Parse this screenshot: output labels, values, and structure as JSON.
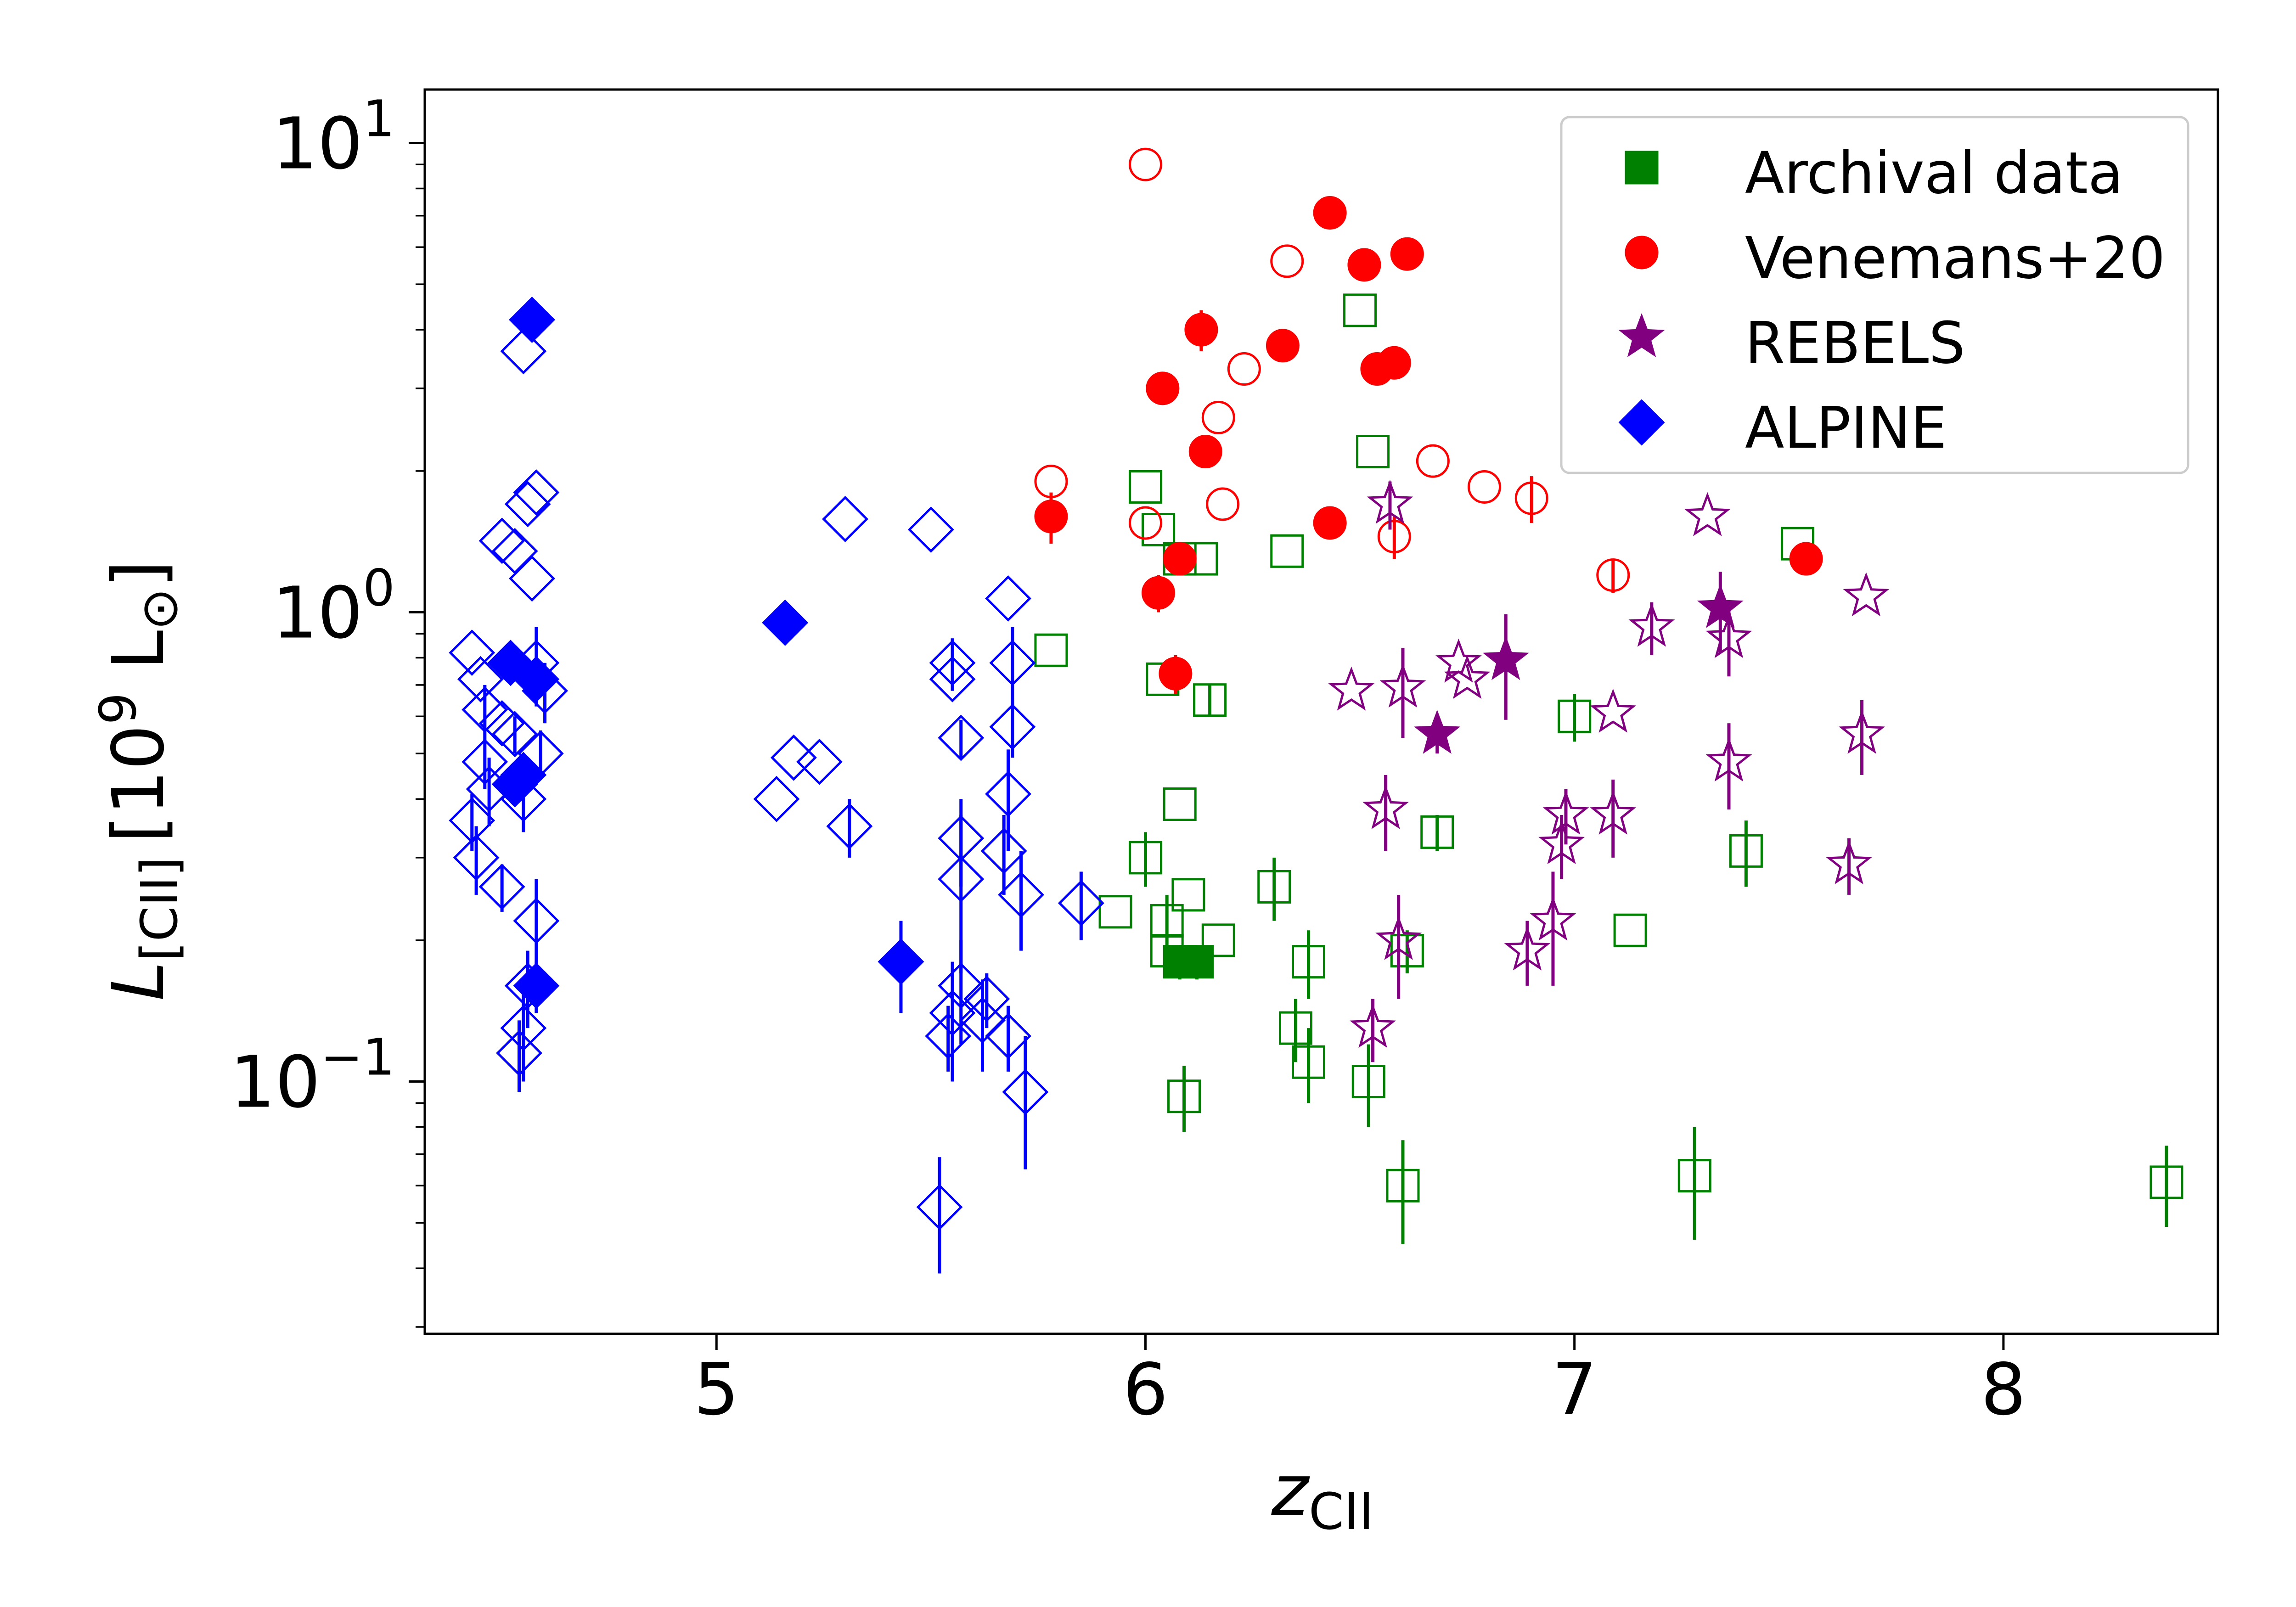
{
  "chart_data": {
    "type": "scatter",
    "xlabel": "z",
    "xlabel_sub": "CII",
    "ylabel": "L",
    "ylabel_sub": "[CII]",
    "ylabel_units": "[10",
    "ylabel_units_sup": "9",
    "ylabel_units_tail": " L",
    "ylabel_units_sun": "⊙",
    "ylabel_units_close": "]",
    "xlim": [
      4.32,
      8.5
    ],
    "ylim": [
      0.029,
      13.0
    ],
    "y_scale": "log",
    "x_ticks": [
      {
        "value": 5,
        "label": "5"
      },
      {
        "value": 6,
        "label": "6"
      },
      {
        "value": 7,
        "label": "7"
      },
      {
        "value": 8,
        "label": "8"
      }
    ],
    "y_ticks": [
      {
        "value": 0.1,
        "base": "10",
        "exp": "−1"
      },
      {
        "value": 1,
        "base": "10",
        "exp": "0"
      },
      {
        "value": 10,
        "base": "10",
        "exp": "1"
      }
    ],
    "legend_position": "top-right",
    "series": [
      {
        "name": "Archival data",
        "marker": "square",
        "color": "#008000",
        "points": [
          [
            6.0,
            1.85,
            0,
            0
          ],
          [
            6.03,
            1.5,
            0,
            0
          ],
          [
            6.08,
            1.3,
            0,
            0
          ],
          [
            6.13,
            1.3,
            0,
            0
          ],
          [
            6.33,
            1.35,
            0,
            0
          ],
          [
            6.5,
            4.4,
            0,
            0
          ],
          [
            6.53,
            2.2,
            0,
            0
          ],
          [
            7.52,
            1.4,
            0,
            0
          ],
          [
            5.78,
            0.83,
            0,
            0
          ],
          [
            6.04,
            0.72,
            0,
            0
          ],
          [
            6.15,
            0.65,
            0.05,
            0.05
          ],
          [
            7.0,
            0.6,
            0.07,
            0.07
          ],
          [
            6.08,
            0.39,
            0,
            0
          ],
          [
            6.68,
            0.34,
            0.03,
            0.03
          ],
          [
            6.0,
            0.3,
            0.04,
            0.04
          ],
          [
            7.4,
            0.31,
            0.05,
            0.05
          ],
          [
            5.93,
            0.23,
            0,
            0
          ],
          [
            6.05,
            0.22,
            0.03,
            0.03
          ],
          [
            6.1,
            0.25,
            0,
            0
          ],
          [
            6.3,
            0.26,
            0.04,
            0.04
          ],
          [
            6.17,
            0.2,
            0,
            0
          ],
          [
            6.05,
            0.19,
            0,
            0
          ],
          [
            6.61,
            0.19,
            0.02,
            0.02
          ],
          [
            7.13,
            0.21,
            0,
            0
          ],
          [
            6.38,
            0.18,
            0.03,
            0.03
          ],
          [
            6.35,
            0.13,
            0.02,
            0.02
          ],
          [
            6.38,
            0.11,
            0.02,
            0.02
          ],
          [
            6.52,
            0.1,
            0.02,
            0.02
          ],
          [
            6.09,
            0.093,
            0.015,
            0.015
          ],
          [
            6.6,
            0.06,
            0.015,
            0.015
          ],
          [
            7.28,
            0.063,
            0.017,
            0.017
          ],
          [
            8.38,
            0.061,
            0.012,
            0.012
          ]
        ],
        "filled_points": [
          [
            6.08,
            0.18,
            0.015,
            0.015
          ],
          [
            6.12,
            0.18,
            0.015,
            0.015
          ]
        ]
      },
      {
        "name": "Venemans+20",
        "marker": "circle",
        "color": "#ff0000",
        "points": [
          [
            6.0,
            9.0,
            0,
            0
          ],
          [
            6.33,
            5.6,
            0,
            0
          ],
          [
            6.23,
            3.3,
            0,
            0
          ],
          [
            6.17,
            2.6,
            0,
            0
          ],
          [
            5.78,
            1.9,
            0,
            0
          ],
          [
            6.0,
            1.55,
            0,
            0
          ],
          [
            6.18,
            1.7,
            0,
            0
          ],
          [
            6.58,
            1.45,
            0.15,
            0.15
          ],
          [
            6.67,
            2.1,
            0,
            0
          ],
          [
            6.79,
            1.85,
            0,
            0
          ],
          [
            6.9,
            1.75,
            0.2,
            0.2
          ],
          [
            7.09,
            1.2,
            0.1,
            0.1
          ]
        ],
        "filled_points": [
          [
            6.43,
            7.1,
            0,
            0
          ],
          [
            6.51,
            5.5,
            0,
            0
          ],
          [
            6.61,
            5.8,
            0,
            0
          ],
          [
            6.13,
            4.0,
            0.4,
            0.4
          ],
          [
            6.32,
            3.7,
            0,
            0
          ],
          [
            6.54,
            3.3,
            0,
            0
          ],
          [
            6.58,
            3.4,
            0,
            0
          ],
          [
            6.04,
            3.0,
            0,
            0
          ],
          [
            6.14,
            2.2,
            0,
            0
          ],
          [
            5.78,
            1.6,
            0.2,
            0.2
          ],
          [
            6.43,
            1.55,
            0,
            0
          ],
          [
            6.08,
            1.3,
            0.1,
            0.1
          ],
          [
            6.03,
            1.1,
            0.1,
            0.1
          ],
          [
            6.07,
            0.74,
            0.07,
            0.07
          ],
          [
            7.54,
            1.3,
            0,
            0
          ]
        ]
      },
      {
        "name": "REBELS",
        "marker": "star",
        "color": "#800080",
        "points": [
          [
            6.57,
            1.7,
            0.2,
            0.2
          ],
          [
            7.31,
            1.6,
            0,
            0
          ],
          [
            7.68,
            1.08,
            0,
            0
          ],
          [
            7.18,
            0.93,
            0.12,
            0.12
          ],
          [
            7.36,
            0.88,
            0.15,
            0.15
          ],
          [
            6.48,
            0.68,
            0,
            0
          ],
          [
            6.6,
            0.69,
            0.15,
            0.15
          ],
          [
            6.73,
            0.78,
            0,
            0
          ],
          [
            6.75,
            0.72,
            0,
            0
          ],
          [
            7.09,
            0.61,
            0,
            0
          ],
          [
            7.67,
            0.55,
            0.1,
            0.1
          ],
          [
            7.36,
            0.48,
            0.1,
            0.1
          ],
          [
            6.56,
            0.38,
            0.07,
            0.07
          ],
          [
            6.98,
            0.37,
            0.05,
            0.05
          ],
          [
            7.09,
            0.37,
            0.07,
            0.07
          ],
          [
            6.97,
            0.32,
            0.05,
            0.05
          ],
          [
            7.64,
            0.29,
            0.04,
            0.04
          ],
          [
            6.95,
            0.22,
            0.06,
            0.06
          ],
          [
            6.59,
            0.2,
            0.05,
            0.05
          ],
          [
            6.89,
            0.19,
            0.03,
            0.03
          ],
          [
            6.53,
            0.13,
            0.02,
            0.02
          ]
        ],
        "filled_points": [
          [
            7.34,
            1.02,
            0.2,
            0.2
          ],
          [
            6.84,
            0.79,
            0.2,
            0.2
          ],
          [
            6.68,
            0.55,
            0.05,
            0.05
          ]
        ]
      },
      {
        "name": "ALPINE",
        "marker": "diamond",
        "color": "#0000ff",
        "points": [
          [
            4.55,
            3.6,
            0,
            0
          ],
          [
            4.58,
            1.8,
            0,
            0
          ],
          [
            4.56,
            1.7,
            0,
            0
          ],
          [
            4.5,
            1.42,
            0,
            0
          ],
          [
            4.53,
            1.35,
            0,
            0
          ],
          [
            4.57,
            1.18,
            0,
            0
          ],
          [
            4.43,
            0.82,
            0,
            0
          ],
          [
            4.58,
            0.78,
            0.15,
            0.15
          ],
          [
            4.45,
            0.72,
            0,
            0
          ],
          [
            4.6,
            0.68,
            0.1,
            0.1
          ],
          [
            4.46,
            0.62,
            0.08,
            0.08
          ],
          [
            4.5,
            0.58,
            0,
            0
          ],
          [
            4.53,
            0.55,
            0.05,
            0.05
          ],
          [
            4.59,
            0.5,
            0.06,
            0.06
          ],
          [
            4.46,
            0.48,
            0.06,
            0.06
          ],
          [
            4.47,
            0.42,
            0.07,
            0.07
          ],
          [
            4.55,
            0.4,
            0.06,
            0.06
          ],
          [
            4.43,
            0.36,
            0.05,
            0.05
          ],
          [
            4.44,
            0.3,
            0.05,
            0.05
          ],
          [
            4.5,
            0.26,
            0.03,
            0.03
          ],
          [
            4.58,
            0.22,
            0.05,
            0.05
          ],
          [
            4.56,
            0.16,
            0.03,
            0.03
          ],
          [
            4.55,
            0.13,
            0.03,
            0.03
          ],
          [
            4.54,
            0.115,
            0.02,
            0.02
          ],
          [
            5.3,
            1.58,
            0,
            0
          ],
          [
            5.5,
            1.5,
            0,
            0
          ],
          [
            5.68,
            1.07,
            0,
            0
          ],
          [
            5.55,
            0.78,
            0.1,
            0.1
          ],
          [
            5.55,
            0.72,
            0,
            0
          ],
          [
            5.69,
            0.78,
            0.15,
            0.15
          ],
          [
            5.57,
            0.54,
            0.05,
            0.05
          ],
          [
            5.69,
            0.57,
            0.08,
            0.08
          ],
          [
            5.18,
            0.49,
            0,
            0
          ],
          [
            5.24,
            0.48,
            0,
            0
          ],
          [
            5.68,
            0.41,
            0.1,
            0.1
          ],
          [
            5.14,
            0.4,
            0,
            0
          ],
          [
            5.31,
            0.35,
            0.05,
            0.05
          ],
          [
            5.57,
            0.33,
            0.07,
            0.07
          ],
          [
            5.67,
            0.31,
            0.06,
            0.06
          ],
          [
            5.57,
            0.27,
            0.1,
            0.1
          ],
          [
            5.71,
            0.25,
            0.06,
            0.06
          ],
          [
            5.85,
            0.24,
            0.04,
            0.04
          ],
          [
            5.57,
            0.16,
            0.04,
            0.04
          ],
          [
            5.55,
            0.14,
            0.04,
            0.04
          ],
          [
            5.63,
            0.15,
            0.02,
            0.02
          ],
          [
            5.54,
            0.125,
            0.02,
            0.02
          ],
          [
            5.62,
            0.135,
            0.03,
            0.03
          ],
          [
            5.68,
            0.125,
            0.02,
            0.02
          ],
          [
            5.72,
            0.095,
            0.03,
            0.03
          ],
          [
            5.52,
            0.054,
            0.015,
            0.015
          ]
        ],
        "filled_points": [
          [
            4.57,
            4.2,
            0,
            0
          ],
          [
            5.16,
            0.95,
            0,
            0
          ],
          [
            4.52,
            0.78,
            0.05,
            0.05
          ],
          [
            4.58,
            0.72,
            0.07,
            0.07
          ],
          [
            4.55,
            0.45,
            0.05,
            0.05
          ],
          [
            4.53,
            0.43,
            0.04,
            0.04
          ],
          [
            5.43,
            0.18,
            0.04,
            0.04
          ],
          [
            4.58,
            0.16,
            0.02,
            0.02
          ]
        ]
      }
    ]
  }
}
